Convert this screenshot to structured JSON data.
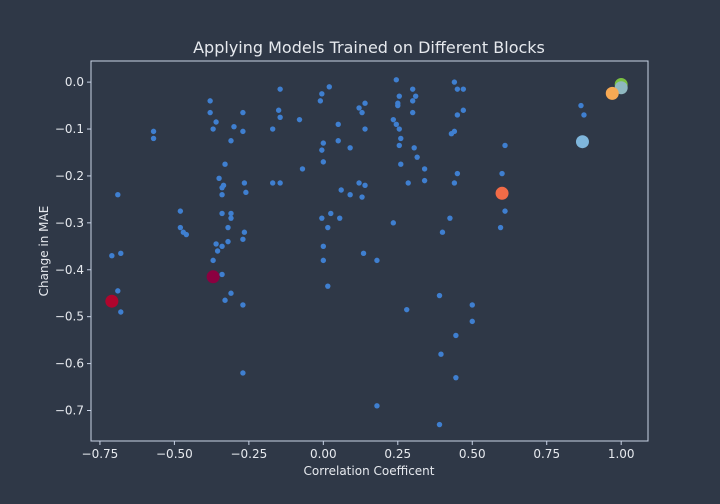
{
  "chart_data": {
    "type": "scatter",
    "title": "Applying Models Trained on Different Blocks",
    "xlabel": "Correlation Coefficent",
    "ylabel": "Change in MAE",
    "xlim": [
      -0.78,
      1.09
    ],
    "ylim": [
      -0.765,
      0.045
    ],
    "grid": false,
    "x_ticks": [
      -0.75,
      -0.5,
      -0.25,
      0.0,
      0.25,
      0.5,
      0.75,
      1.0
    ],
    "x_tick_labels": [
      "−0.75",
      "−0.50",
      "−0.25",
      "0.00",
      "0.25",
      "0.50",
      "0.75",
      "1.00"
    ],
    "y_ticks": [
      0.0,
      -0.1,
      -0.2,
      -0.3,
      -0.4,
      -0.5,
      -0.6,
      -0.7
    ],
    "y_tick_labels": [
      "0.0",
      "−0.1",
      "−0.2",
      "−0.3",
      "−0.4",
      "−0.5",
      "−0.6",
      "−0.7"
    ],
    "colors": {
      "background": "#2f3847",
      "axes_frame": "#c9d3e6",
      "text": "#e6e9ee",
      "small_points": "#3f7fd0"
    },
    "series": [
      {
        "color": "#3f7fd0",
        "size": "small",
        "points": [
          [
            -0.69,
            -0.24
          ],
          [
            -0.71,
            -0.37
          ],
          [
            -0.68,
            -0.365
          ],
          [
            -0.69,
            -0.445
          ],
          [
            -0.68,
            -0.49
          ],
          [
            -0.57,
            -0.105
          ],
          [
            -0.57,
            -0.12
          ],
          [
            -0.48,
            -0.275
          ],
          [
            -0.48,
            -0.31
          ],
          [
            -0.47,
            -0.32
          ],
          [
            -0.46,
            -0.325
          ],
          [
            -0.38,
            -0.04
          ],
          [
            -0.38,
            -0.065
          ],
          [
            -0.37,
            -0.1
          ],
          [
            -0.36,
            -0.085
          ],
          [
            -0.35,
            -0.205
          ],
          [
            -0.34,
            -0.225
          ],
          [
            -0.335,
            -0.22
          ],
          [
            -0.34,
            -0.24
          ],
          [
            -0.33,
            -0.175
          ],
          [
            -0.31,
            -0.125
          ],
          [
            -0.3,
            -0.095
          ],
          [
            -0.34,
            -0.28
          ],
          [
            -0.31,
            -0.28
          ],
          [
            -0.31,
            -0.29
          ],
          [
            -0.32,
            -0.31
          ],
          [
            -0.32,
            -0.34
          ],
          [
            -0.34,
            -0.35
          ],
          [
            -0.36,
            -0.345
          ],
          [
            -0.355,
            -0.36
          ],
          [
            -0.37,
            -0.38
          ],
          [
            -0.34,
            -0.41
          ],
          [
            -0.31,
            -0.45
          ],
          [
            -0.33,
            -0.465
          ],
          [
            -0.27,
            -0.065
          ],
          [
            -0.27,
            -0.105
          ],
          [
            -0.265,
            -0.215
          ],
          [
            -0.26,
            -0.235
          ],
          [
            -0.265,
            -0.32
          ],
          [
            -0.27,
            -0.335
          ],
          [
            -0.27,
            -0.475
          ],
          [
            -0.27,
            -0.62
          ],
          [
            -0.17,
            -0.1
          ],
          [
            -0.17,
            -0.215
          ],
          [
            -0.145,
            -0.015
          ],
          [
            -0.15,
            -0.06
          ],
          [
            -0.145,
            -0.075
          ],
          [
            -0.145,
            -0.215
          ],
          [
            -0.08,
            -0.08
          ],
          [
            -0.07,
            -0.185
          ],
          [
            -0.01,
            -0.04
          ],
          [
            -0.005,
            -0.025
          ],
          [
            0.0,
            -0.13
          ],
          [
            -0.005,
            -0.145
          ],
          [
            0.0,
            -0.17
          ],
          [
            -0.005,
            -0.29
          ],
          [
            0.0,
            -0.35
          ],
          [
            0.0,
            -0.38
          ],
          [
            0.02,
            -0.01
          ],
          [
            0.015,
            -0.31
          ],
          [
            0.025,
            -0.28
          ],
          [
            0.015,
            -0.435
          ],
          [
            0.05,
            -0.09
          ],
          [
            0.05,
            -0.125
          ],
          [
            0.06,
            -0.23
          ],
          [
            0.055,
            -0.29
          ],
          [
            0.09,
            -0.14
          ],
          [
            0.09,
            -0.24
          ],
          [
            0.12,
            -0.055
          ],
          [
            0.13,
            -0.065
          ],
          [
            0.14,
            -0.045
          ],
          [
            0.14,
            -0.1
          ],
          [
            0.12,
            -0.215
          ],
          [
            0.14,
            -0.22
          ],
          [
            0.13,
            -0.245
          ],
          [
            0.135,
            -0.365
          ],
          [
            0.18,
            -0.38
          ],
          [
            0.18,
            -0.69
          ],
          [
            0.245,
            0.005
          ],
          [
            0.255,
            -0.03
          ],
          [
            0.25,
            -0.045
          ],
          [
            0.25,
            -0.05
          ],
          [
            0.245,
            -0.09
          ],
          [
            0.255,
            -0.1
          ],
          [
            0.26,
            -0.12
          ],
          [
            0.255,
            -0.135
          ],
          [
            0.26,
            -0.175
          ],
          [
            0.235,
            -0.08
          ],
          [
            0.235,
            -0.3
          ],
          [
            0.285,
            -0.215
          ],
          [
            0.28,
            -0.485
          ],
          [
            0.3,
            -0.015
          ],
          [
            0.3,
            -0.04
          ],
          [
            0.31,
            -0.03
          ],
          [
            0.3,
            -0.065
          ],
          [
            0.305,
            -0.14
          ],
          [
            0.315,
            -0.16
          ],
          [
            0.34,
            -0.185
          ],
          [
            0.34,
            -0.21
          ],
          [
            0.39,
            -0.455
          ],
          [
            0.4,
            -0.32
          ],
          [
            0.395,
            -0.58
          ],
          [
            0.39,
            -0.73
          ],
          [
            0.43,
            -0.11
          ],
          [
            0.44,
            -0.105
          ],
          [
            0.44,
            0.0
          ],
          [
            0.45,
            -0.015
          ],
          [
            0.47,
            -0.015
          ],
          [
            0.45,
            -0.07
          ],
          [
            0.47,
            -0.06
          ],
          [
            0.45,
            -0.195
          ],
          [
            0.44,
            -0.215
          ],
          [
            0.425,
            -0.29
          ],
          [
            0.445,
            -0.54
          ],
          [
            0.445,
            -0.63
          ],
          [
            0.5,
            -0.475
          ],
          [
            0.5,
            -0.51
          ],
          [
            0.595,
            -0.31
          ],
          [
            0.6,
            -0.195
          ],
          [
            0.61,
            -0.135
          ],
          [
            0.61,
            -0.275
          ],
          [
            0.865,
            -0.05
          ],
          [
            0.875,
            -0.07
          ]
        ]
      },
      {
        "color": "#7fb6dc",
        "size": "large",
        "points": [
          [
            0.87,
            -0.127
          ]
        ]
      },
      {
        "color": "#7ac143",
        "size": "large",
        "points": [
          [
            1.0,
            -0.005
          ]
        ]
      },
      {
        "color": "#8fb8c0",
        "size": "large",
        "points": [
          [
            1.0,
            -0.012
          ]
        ]
      },
      {
        "color": "#f7a954",
        "size": "large",
        "points": [
          [
            0.97,
            -0.024
          ]
        ]
      },
      {
        "color": "#f26b47",
        "size": "large",
        "points": [
          [
            0.6,
            -0.237
          ]
        ]
      },
      {
        "color": "#8b0040",
        "size": "large",
        "points": [
          [
            -0.37,
            -0.415
          ]
        ]
      },
      {
        "color": "#b0052d",
        "size": "large",
        "points": [
          [
            -0.71,
            -0.467
          ]
        ]
      }
    ]
  }
}
